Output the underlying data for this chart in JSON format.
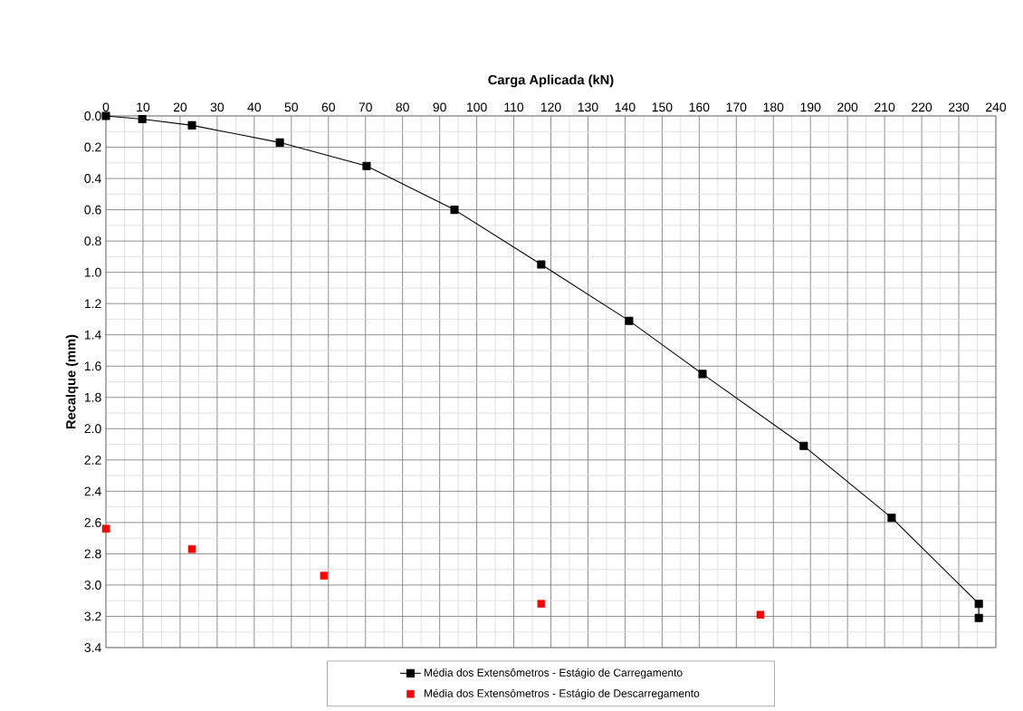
{
  "chart_data": {
    "type": "line",
    "xlabel": "Carga Aplicada (kN)",
    "ylabel": "Recalque (mm)",
    "series": [
      {
        "name": "Média dos Extensômetros - Estágio de Carregamento",
        "color": "#000000",
        "marker": "square",
        "x": [
          0,
          9.8,
          23.2,
          46.9,
          70.3,
          94,
          117.4,
          141.1,
          160.9,
          188.2,
          211.9,
          235.4,
          235.4
        ],
        "values": [
          0,
          0.02,
          0.06,
          0.17,
          0.32,
          0.6,
          0.95,
          1.31,
          1.65,
          2.11,
          2.57,
          3.12,
          3.21
        ]
      },
      {
        "name": "Média dos Extensômetros - Estágio de Descarregamento",
        "type": "scatter",
        "color": "#ff0000",
        "marker": "square",
        "x": [
          0,
          23.2,
          58.8,
          117.4,
          176.5
        ],
        "values": [
          2.64,
          2.77,
          2.94,
          3.12,
          3.19
        ]
      }
    ],
    "xlim": [
      0,
      240
    ],
    "xticks": [
      0,
      10,
      20,
      30,
      40,
      50,
      60,
      70,
      80,
      90,
      100,
      110,
      120,
      130,
      140,
      150,
      160,
      170,
      180,
      190,
      200,
      210,
      220,
      230,
      240
    ],
    "ylim": [
      3.4,
      0
    ],
    "yticks": [
      {
        "value": 0,
        "label": "0.0"
      },
      0.2,
      0.4,
      0.6,
      0.8,
      {
        "value": 1,
        "label": "1.0"
      },
      1.2,
      1.4,
      1.6,
      1.8,
      {
        "value": 2,
        "label": "2.0"
      },
      2.2,
      2.4,
      2.6,
      2.8,
      {
        "value": 3,
        "label": "3.0"
      },
      3.2,
      3.4
    ],
    "grid": true,
    "legend": "bottom",
    "line_style": "solid"
  }
}
